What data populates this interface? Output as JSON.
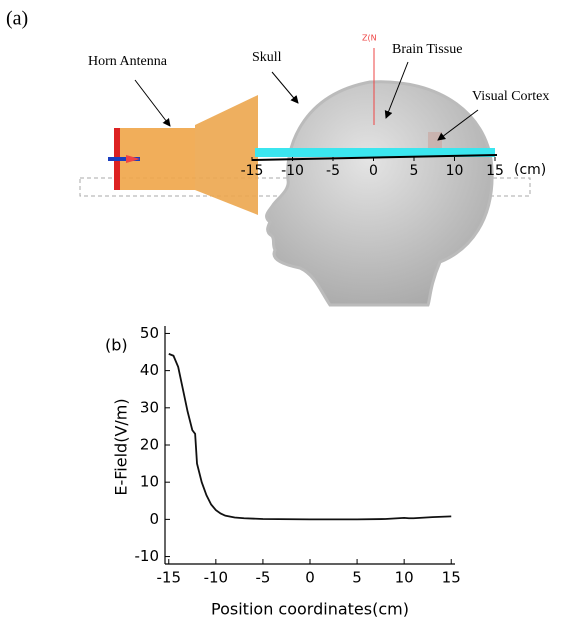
{
  "illustration": {
    "panel_label": "(a)",
    "labels": {
      "horn": "Horn Antenna",
      "skull": "Skull",
      "brain": "Brain Tissue",
      "cortex": "Visual Cortex",
      "axis": "Z(N"
    },
    "ruler": {
      "ticks": [
        -15,
        -10,
        -5,
        0,
        5,
        10,
        15
      ],
      "unit": "(cm)"
    }
  },
  "chart_data": {
    "type": "line",
    "panel_label": "(b)",
    "x_label": "Position coordinates(cm)",
    "y_label": "E-Field(V/m)",
    "x": [
      -15,
      -14.5,
      -14,
      -13.5,
      -13,
      -12.5,
      -12.2,
      -12,
      -11.5,
      -11,
      -10.5,
      -10,
      -9.5,
      -9,
      -8,
      -7,
      -5,
      0,
      5,
      8,
      10,
      10.5,
      11,
      13,
      15
    ],
    "values": [
      44.5,
      44,
      41,
      35,
      29,
      24,
      23,
      15,
      10,
      6.5,
      4,
      2.5,
      1.6,
      1,
      0.5,
      0.3,
      0.1,
      0,
      0,
      0.1,
      0.4,
      0.3,
      0.3,
      0.6,
      0.8
    ],
    "color": "#111111",
    "xlim": [
      -15.4,
      15.4
    ],
    "ylim": [
      -12,
      52
    ],
    "xticks": [
      -15,
      -10,
      -5,
      0,
      5,
      10,
      15
    ],
    "yticks": [
      -10,
      0,
      10,
      20,
      30,
      40,
      50
    ]
  }
}
